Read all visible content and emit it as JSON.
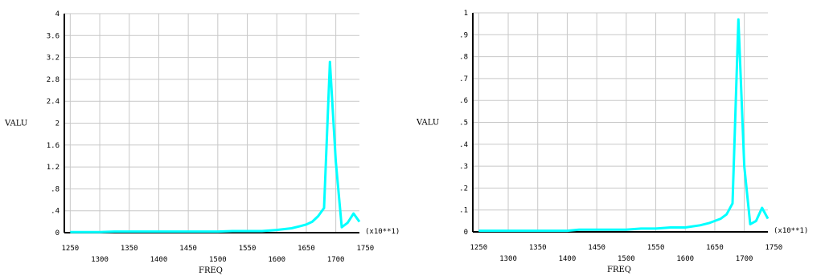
{
  "chart_data": [
    {
      "type": "line",
      "title": "",
      "xlabel": "FREQ",
      "ylabel": "VALU",
      "x_multiplier_label": "(x10**1)",
      "xlim": [
        1240,
        1740
      ],
      "ylim": [
        0,
        4
      ],
      "grid": true,
      "x_ticks": [
        1250,
        1300,
        1350,
        1400,
        1450,
        1500,
        1550,
        1600,
        1650,
        1700,
        1750
      ],
      "x_tick_labels": [
        "1250",
        "1300",
        "1350",
        "1400",
        "1450",
        "1500",
        "1550",
        "1600",
        "1650",
        "1700",
        "1750"
      ],
      "y_ticks": [
        0,
        0.4,
        0.8,
        1.2,
        1.6,
        2.0,
        2.4,
        2.8,
        3.2,
        3.6,
        4.0
      ],
      "y_tick_labels": [
        "0",
        ".4",
        ".8",
        "1.2",
        "1.6",
        "2",
        "2.4",
        "2.8",
        "3.2",
        "3.6",
        "4"
      ],
      "series": [
        {
          "color": "#00ffff",
          "x": [
            1250,
            1300,
            1325,
            1350,
            1400,
            1450,
            1500,
            1525,
            1550,
            1575,
            1600,
            1625,
            1640,
            1650,
            1660,
            1670,
            1680,
            1690,
            1700,
            1710,
            1720,
            1730,
            1740
          ],
          "values": [
            0.01,
            0.01,
            0.02,
            0.02,
            0.02,
            0.02,
            0.02,
            0.03,
            0.03,
            0.03,
            0.05,
            0.08,
            0.12,
            0.15,
            0.2,
            0.3,
            0.45,
            3.12,
            1.3,
            0.1,
            0.18,
            0.35,
            0.2
          ]
        }
      ]
    },
    {
      "type": "line",
      "title": "",
      "xlabel": "FREQ",
      "ylabel": "VALU",
      "x_multiplier_label": "(x10**1)",
      "xlim": [
        1240,
        1740
      ],
      "ylim": [
        0,
        1
      ],
      "grid": true,
      "x_ticks": [
        1250,
        1300,
        1350,
        1400,
        1450,
        1500,
        1550,
        1600,
        1650,
        1700,
        1750
      ],
      "x_tick_labels": [
        "1250",
        "1300",
        "1350",
        "1400",
        "1450",
        "1500",
        "1550",
        "1600",
        "1650",
        "1700",
        "1750"
      ],
      "y_ticks": [
        0,
        0.1,
        0.2,
        0.3,
        0.4,
        0.5,
        0.6,
        0.7,
        0.8,
        0.9,
        1.0
      ],
      "y_tick_labels": [
        "0",
        ".1",
        ".2",
        ".3",
        ".4",
        ".5",
        ".6",
        ".7",
        ".8",
        ".9",
        "1"
      ],
      "series": [
        {
          "color": "#00ffff",
          "x": [
            1250,
            1300,
            1350,
            1400,
            1420,
            1450,
            1500,
            1525,
            1550,
            1575,
            1600,
            1625,
            1640,
            1650,
            1660,
            1670,
            1680,
            1690,
            1700,
            1710,
            1720,
            1730,
            1740
          ],
          "values": [
            0.005,
            0.005,
            0.005,
            0.005,
            0.01,
            0.01,
            0.01,
            0.015,
            0.015,
            0.02,
            0.02,
            0.03,
            0.04,
            0.05,
            0.06,
            0.08,
            0.13,
            0.97,
            0.3,
            0.035,
            0.05,
            0.11,
            0.06
          ]
        }
      ]
    }
  ]
}
